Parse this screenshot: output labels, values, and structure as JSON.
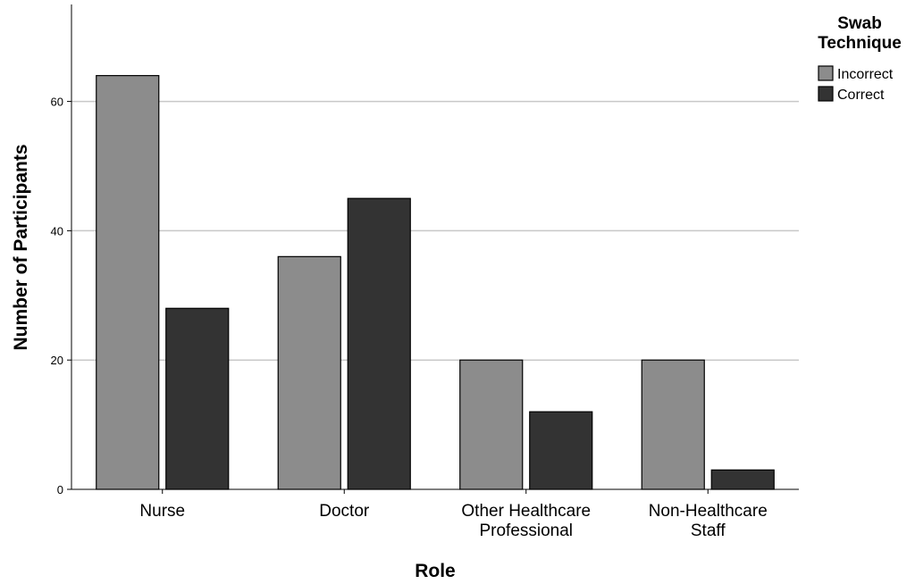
{
  "chart_data": {
    "type": "bar",
    "xlabel": "Role",
    "ylabel": "Number of Participants",
    "ylim": [
      0,
      75
    ],
    "yticks": [
      0,
      20,
      40,
      60
    ],
    "grid": true,
    "categories": [
      [
        "Nurse"
      ],
      [
        "Doctor"
      ],
      [
        "Other Healthcare",
        "Professional"
      ],
      [
        "Non-Healthcare",
        "Staff"
      ]
    ],
    "series": [
      {
        "name": "Incorrect",
        "values": [
          64,
          36,
          20,
          20
        ],
        "color": "#8c8c8c"
      },
      {
        "name": "Correct",
        "values": [
          28,
          45,
          12,
          3
        ],
        "color": "#333333"
      }
    ],
    "legend": {
      "title_lines": [
        "Swab",
        "Technique"
      ],
      "placement": "right"
    }
  }
}
